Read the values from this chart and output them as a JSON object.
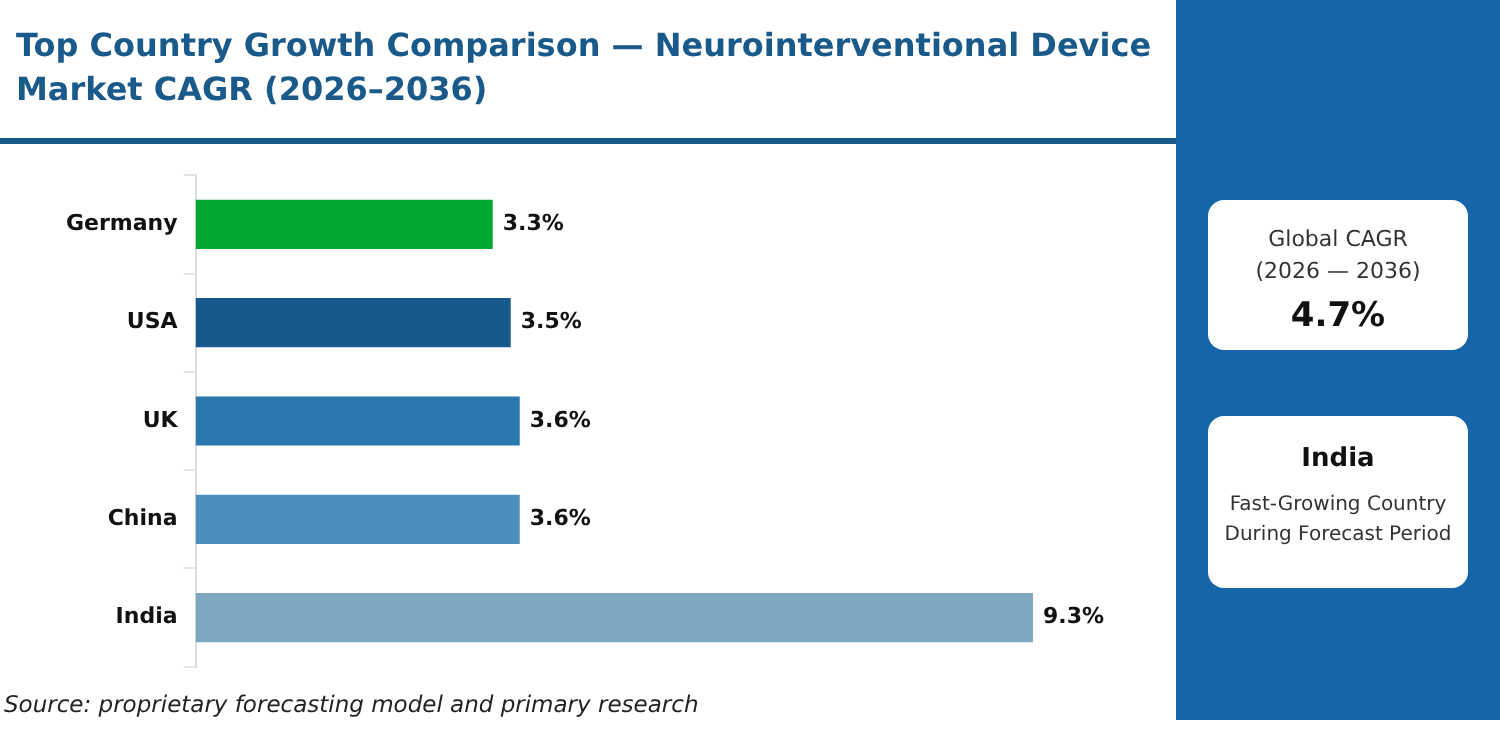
{
  "chart_data": {
    "type": "bar",
    "orientation": "horizontal",
    "title": "Top Country Growth Comparison — Neurointerventional Device Market CAGR (2026–2036)",
    "categories": [
      "Germany",
      "USA",
      "UK",
      "China",
      "India"
    ],
    "values": [
      3.3,
      3.5,
      3.6,
      3.6,
      9.3
    ],
    "colors": [
      "#00a832",
      "#165a8c",
      "#2a78ae",
      "#4a8fbb",
      "#7ea7c0"
    ],
    "value_labels": [
      "3.3%",
      "3.5%",
      "3.6%",
      "3.6%",
      "9.3%"
    ],
    "annotations": [
      "Global CAGR\n(2026 — 2036)",
      "4.7%",
      "India",
      "Fast-Growing Country\nDuring Forecast Period",
      "Source: proprietary forecasting model and primary research"
    ]
  }
}
